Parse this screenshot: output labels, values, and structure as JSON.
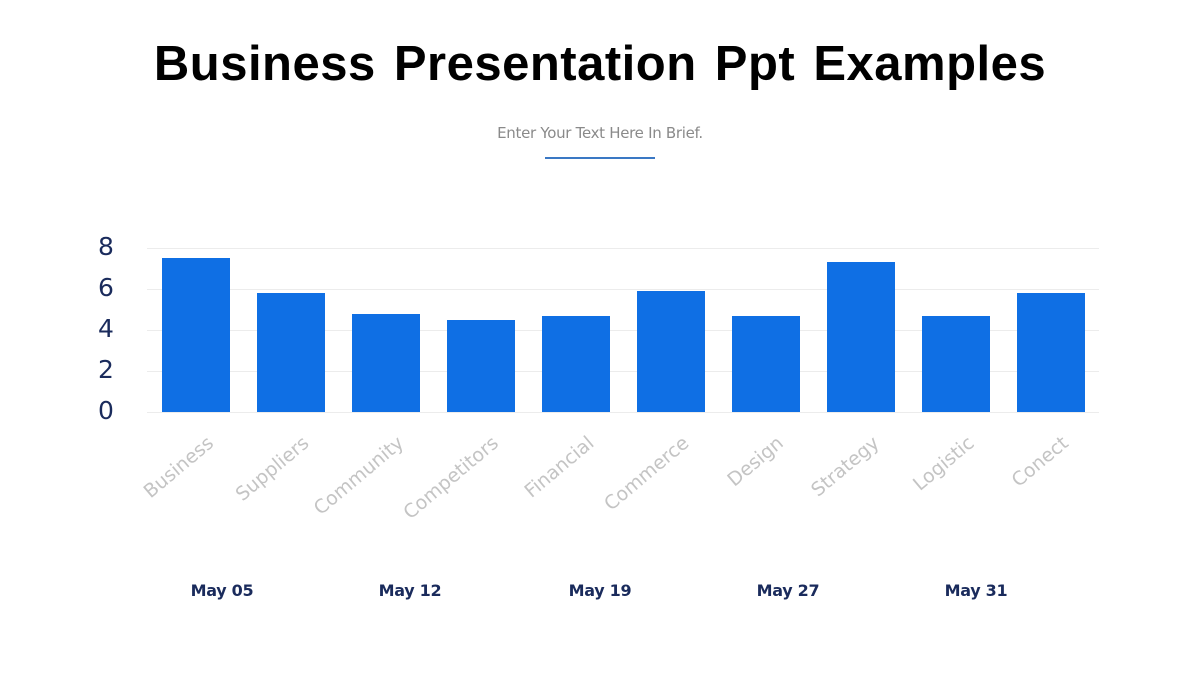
{
  "slide": {
    "title": "Business Presentation Ppt Examples",
    "subtitle": "Enter Your Text Here In Brief."
  },
  "colors": {
    "bar": "#0f6fe4",
    "axis_text": "#1a2b5c",
    "category_text": "#c4c4c4",
    "accent_underline": "#3a78c4"
  },
  "chart_data": {
    "type": "bar",
    "title": "",
    "xlabel": "",
    "ylabel": "",
    "categories": [
      "Business",
      "Suppliers",
      "Community",
      "Competitors",
      "Financial",
      "Commerce",
      "Design",
      "Strategy",
      "Logistic",
      "Conect"
    ],
    "values": [
      7.5,
      5.8,
      4.8,
      4.5,
      4.7,
      5.9,
      4.7,
      7.3,
      4.7,
      5.8
    ],
    "ylim": [
      0,
      8
    ],
    "yticks": [
      "0",
      "2",
      "4",
      "6",
      "8"
    ],
    "grid": true,
    "legend": null,
    "x_label_rotation": -40
  },
  "dates": [
    "May 05",
    "May 12",
    "May 19",
    "May 27",
    "May 31"
  ]
}
